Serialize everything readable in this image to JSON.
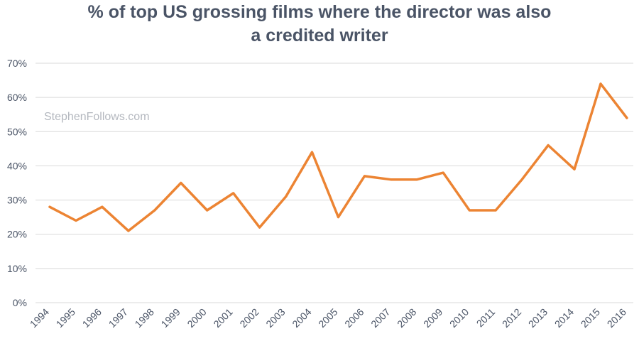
{
  "chart_data": {
    "type": "line",
    "title": "% of top US grossing films where the director was also a credited writer",
    "title_lines": [
      "% of top US grossing films where the director was also",
      "a credited writer"
    ],
    "watermark": "StephenFollows.com",
    "categories": [
      "1994",
      "1995",
      "1996",
      "1997",
      "1998",
      "1999",
      "2000",
      "2001",
      "2002",
      "2003",
      "2004",
      "2005",
      "2006",
      "2007",
      "2008",
      "2009",
      "2010",
      "2011",
      "2012",
      "2013",
      "2014",
      "2015",
      "2016"
    ],
    "series": [
      {
        "values": [
          28,
          24,
          28,
          21,
          27,
          35,
          27,
          32,
          22,
          31,
          44,
          25,
          37,
          36,
          36,
          38,
          27,
          27,
          36,
          46,
          39,
          64,
          54
        ],
        "color": "#ec8433"
      }
    ],
    "yticks": [
      "0%",
      "10%",
      "20%",
      "30%",
      "40%",
      "50%",
      "60%",
      "70%"
    ],
    "ylim": [
      0,
      70
    ],
    "ystep": 10,
    "grid": true,
    "legend": "none",
    "text_color": "#4a5466",
    "grid_color": "#d9d9d9"
  }
}
